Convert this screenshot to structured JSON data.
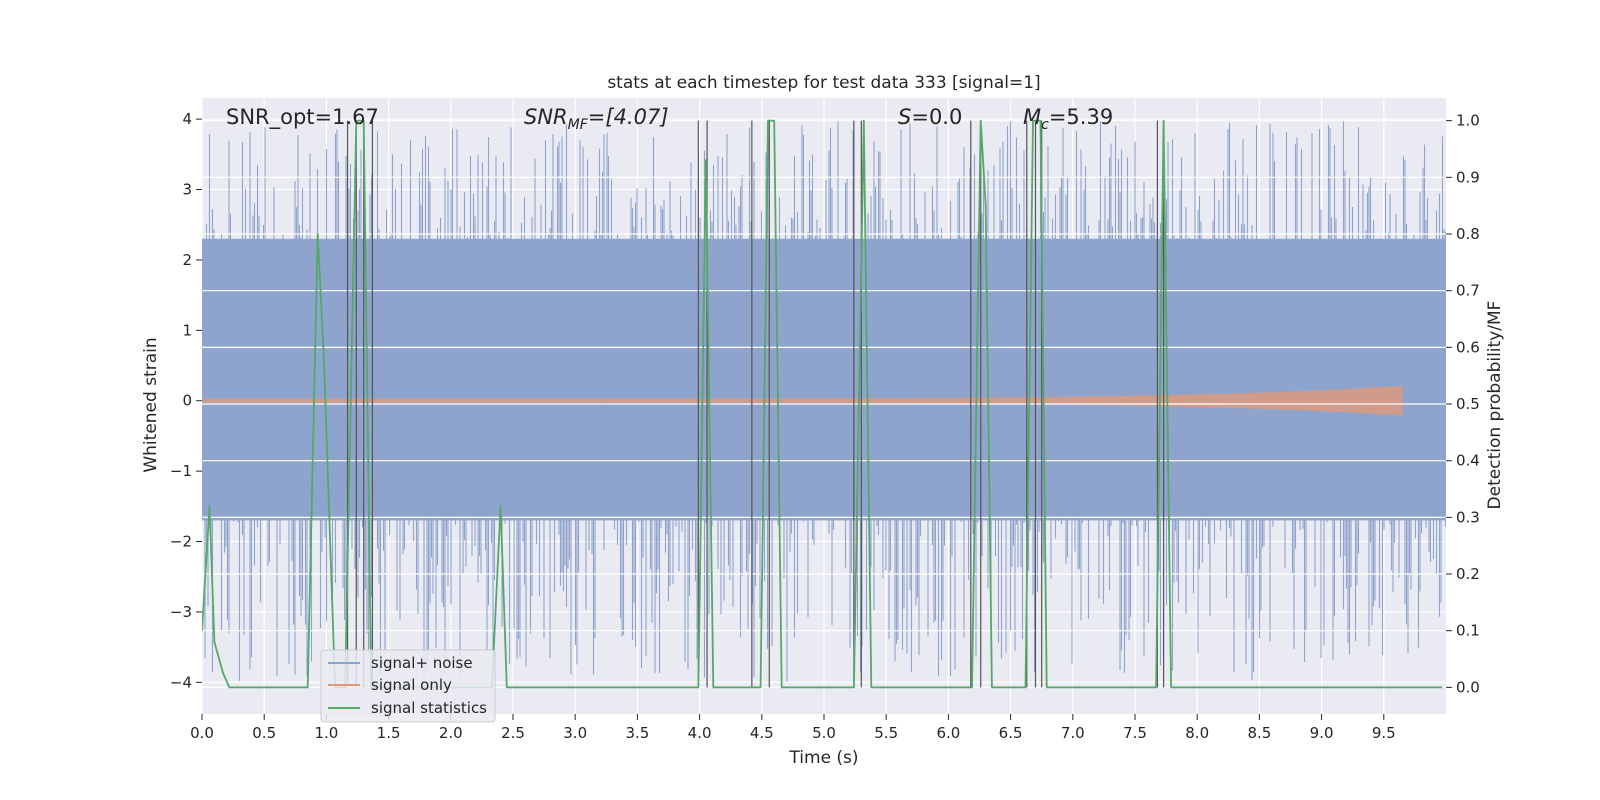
{
  "chart_data": {
    "type": "line",
    "title": "stats at each timestep for test data 333 [signal=1]",
    "xlabel": "Time (s)",
    "ylabel": "Whitened strain",
    "ylabel_right": "Detection probability/MF",
    "xlim": [
      0,
      10
    ],
    "ylim": [
      -4.45,
      4.3
    ],
    "ylim_right": [
      -0.047,
      1.04
    ],
    "x_ticks": [
      "0.0",
      "0.5",
      "1.0",
      "1.5",
      "2.0",
      "2.5",
      "3.0",
      "3.5",
      "4.0",
      "4.5",
      "5.0",
      "5.5",
      "6.0",
      "6.5",
      "7.0",
      "7.5",
      "8.0",
      "8.5",
      "9.0",
      "9.5"
    ],
    "y_ticks": [
      "4",
      "3",
      "2",
      "1",
      "0",
      "−1",
      "−2",
      "−3",
      "−4"
    ],
    "y_right_ticks": [
      "1.0",
      "0.9",
      "0.8",
      "0.7",
      "0.6",
      "0.5",
      "0.4",
      "0.3",
      "0.2",
      "0.1",
      "0.0"
    ],
    "grid": true,
    "legend_position": "lower-left",
    "annotations": {
      "snr_opt": "SNR_opt=1.67",
      "snr_mf_main": "SNR",
      "snr_mf_sub": "MF",
      "snr_mf_value": "=[4.07]",
      "s_main": "S",
      "s_value": "=0.0",
      "mc_main": "M",
      "mc_sub": "c",
      "mc_value": "=5.39"
    },
    "series": [
      {
        "name": "signal+ noise",
        "color": "#8fa4cc",
        "description_only": false,
        "envelope_upper": 2.3,
        "envelope_lower": -1.7,
        "peak_abs": 4.0
      },
      {
        "name": "signal only",
        "color": "#dd9a7e",
        "chirp_end_time": 9.65,
        "chirp_peak_amplitude": 0.18
      },
      {
        "name": "signal statistics",
        "color": "#55a868",
        "x": [
          0.0,
          0.06,
          0.1,
          0.17,
          0.22,
          0.28,
          0.85,
          0.93,
          0.98,
          1.07,
          1.15,
          1.24,
          1.3,
          1.36,
          1.43,
          1.98,
          2.33,
          2.4,
          2.45,
          2.49,
          3.99,
          4.05,
          4.11,
          4.42,
          4.49,
          4.55,
          4.6,
          4.66,
          5.24,
          5.32,
          5.38,
          5.43,
          6.19,
          6.26,
          6.3,
          6.35,
          6.39,
          6.62,
          6.68,
          6.74,
          6.79,
          6.84,
          6.91,
          7.67,
          7.73,
          7.79,
          7.85,
          9.97
        ],
        "y": [
          0.1,
          0.32,
          0.08,
          0.025,
          0.0,
          0.0,
          0.0,
          0.8,
          0.58,
          0.0,
          0.0,
          1.0,
          1.0,
          0.0,
          0.0,
          0.0,
          0.0,
          0.32,
          0.0,
          0.0,
          0.0,
          0.93,
          0.0,
          0.0,
          0.0,
          1.0,
          1.0,
          0.0,
          0.0,
          1.0,
          0.0,
          0.0,
          0.0,
          1.0,
          0.85,
          0.0,
          0.0,
          0.0,
          1.0,
          1.0,
          0.0,
          0.0,
          0.0,
          0.0,
          1.0,
          0.0,
          0.0,
          0.0
        ]
      }
    ],
    "vertical_markers": [
      1.17,
      1.24,
      1.3,
      1.37,
      3.99,
      4.06,
      4.42,
      4.56,
      5.24,
      5.3,
      6.18,
      6.26,
      6.63,
      6.7,
      6.75,
      7.68,
      7.73
    ]
  }
}
